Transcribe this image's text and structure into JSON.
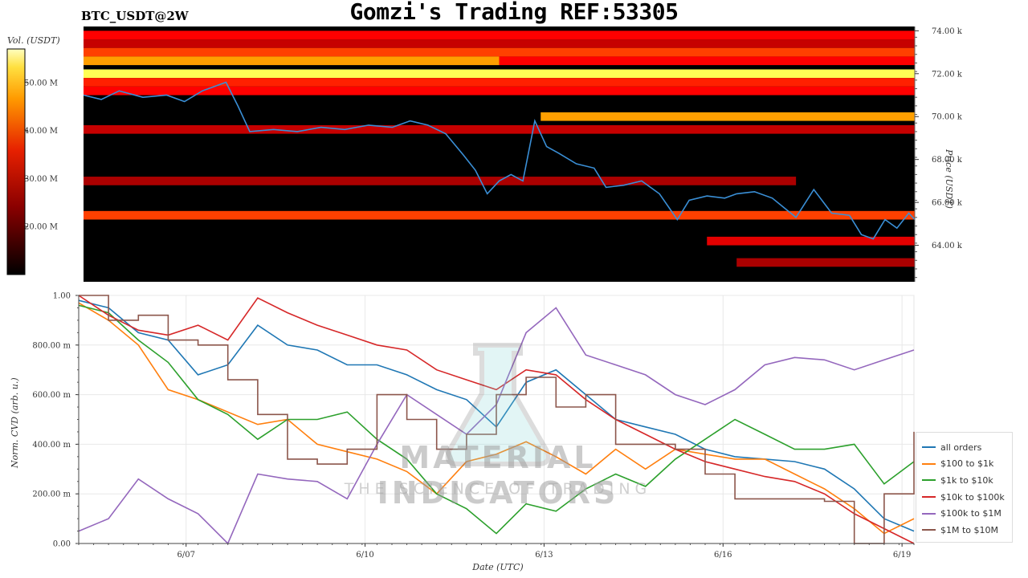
{
  "header": {
    "title": "Gomzi's Trading REF:53305",
    "symbol": "BTC_USDT@2W"
  },
  "colorbar": {
    "label": "Vol. (USDT)",
    "ticks": [
      "50.00 M",
      "40.00 M",
      "30.00 M",
      "20.00 M"
    ],
    "colormap": "hot"
  },
  "watermark": {
    "title": "MATERIAL INDICATORS",
    "subtitle": "THE SCIENCE OF TRADING"
  },
  "chart_data": [
    {
      "type": "heatmap",
      "name": "order-book-heatmap",
      "ylabel": "Price (USDT)",
      "ylim": [
        62300,
        74200
      ],
      "yticks": [
        "74.00 k",
        "72.00 k",
        "70.00 k",
        "68.00 k",
        "66.00 k",
        "64.00 k"
      ],
      "ytick_values": [
        74000,
        72000,
        70000,
        68000,
        66000,
        64000
      ],
      "colorbar_range": [
        10,
        57
      ],
      "bands": [
        {
          "price": 73800,
          "level": 0.45,
          "start": 0,
          "end": 14
        },
        {
          "price": 73400,
          "level": 0.35,
          "start": 0,
          "end": 14
        },
        {
          "price": 73000,
          "level": 0.55,
          "start": 0,
          "end": 14
        },
        {
          "price": 72600,
          "level": 0.7,
          "start": 0,
          "end": 7
        },
        {
          "price": 72600,
          "level": 0.45,
          "start": 7,
          "end": 14
        },
        {
          "price": 72000,
          "level": 0.9,
          "start": 0,
          "end": 14
        },
        {
          "price": 71600,
          "level": 0.5,
          "start": 0,
          "end": 14
        },
        {
          "price": 71200,
          "level": 0.45,
          "start": 0,
          "end": 14
        },
        {
          "price": 70000,
          "level": 0.7,
          "start": 7.7,
          "end": 14
        },
        {
          "price": 69400,
          "level": 0.35,
          "start": 0,
          "end": 14
        },
        {
          "price": 67000,
          "level": 0.3,
          "start": 0,
          "end": 12
        },
        {
          "price": 65400,
          "level": 0.55,
          "start": 0,
          "end": 14
        },
        {
          "price": 64200,
          "level": 0.4,
          "start": 10.5,
          "end": 14
        },
        {
          "price": 63200,
          "level": 0.3,
          "start": 11,
          "end": 14
        }
      ],
      "price_series": {
        "color": "#3a8fd6",
        "x": [
          0,
          0.3,
          0.6,
          1.0,
          1.4,
          1.7,
          2.0,
          2.4,
          2.6,
          2.8,
          3.2,
          3.6,
          4.0,
          4.4,
          4.8,
          5.2,
          5.5,
          5.8,
          6.1,
          6.4,
          6.6,
          6.8,
          7.0,
          7.2,
          7.4,
          7.6,
          7.8,
          8.0,
          8.3,
          8.6,
          8.8,
          9.1,
          9.4,
          9.7,
          10.0,
          10.2,
          10.5,
          10.8,
          11.0,
          11.3,
          11.6,
          12.0,
          12.3,
          12.6,
          12.9,
          13.1,
          13.3,
          13.5,
          13.7,
          13.9,
          14.0
        ],
        "y": [
          71000,
          70800,
          71200,
          70900,
          71000,
          70700,
          71200,
          71600,
          70500,
          69300,
          69400,
          69300,
          69500,
          69400,
          69600,
          69500,
          69800,
          69600,
          69200,
          68200,
          67500,
          66400,
          67000,
          67300,
          67000,
          69800,
          68600,
          68300,
          67800,
          67600,
          66700,
          66800,
          67000,
          66400,
          65200,
          66100,
          66300,
          66200,
          66400,
          66500,
          66200,
          65300,
          66600,
          65500,
          65400,
          64500,
          64300,
          65200,
          64800,
          65500,
          65200
        ]
      }
    },
    {
      "type": "line",
      "name": "cvd-lines",
      "xlabel": "Date (UTC)",
      "ylabel": "Norm. CVD (arb. u.)",
      "ylim": [
        0,
        1.0
      ],
      "yticks": [
        "1.00",
        "800.00 m",
        "600.00 m",
        "400.00 m",
        "200.00 m",
        "0.00"
      ],
      "ytick_values": [
        1.0,
        0.8,
        0.6,
        0.4,
        0.2,
        0.0
      ],
      "xlim": [
        0,
        14
      ],
      "xticks": [
        "6/07",
        "6/10",
        "6/13",
        "6/16",
        "6/19"
      ],
      "xtick_values": [
        1.8,
        4.8,
        7.8,
        10.8,
        13.8
      ],
      "x": [
        0,
        0.5,
        1.0,
        1.5,
        2.0,
        2.5,
        3.0,
        3.5,
        4.0,
        4.5,
        5.0,
        5.5,
        6.0,
        6.5,
        7.0,
        7.5,
        8.0,
        8.5,
        9.0,
        9.5,
        10.0,
        10.5,
        11.0,
        11.5,
        12.0,
        12.5,
        13.0,
        13.5,
        14.0
      ],
      "series": [
        {
          "name": "all orders",
          "color": "#1f77b4",
          "values": [
            0.98,
            0.95,
            0.85,
            0.82,
            0.68,
            0.72,
            0.88,
            0.8,
            0.78,
            0.72,
            0.72,
            0.68,
            0.62,
            0.58,
            0.47,
            0.65,
            0.7,
            0.6,
            0.5,
            0.47,
            0.44,
            0.38,
            0.35,
            0.34,
            0.33,
            0.3,
            0.22,
            0.1,
            0.05
          ]
        },
        {
          "name": "$100 to $1k",
          "color": "#ff7f0e",
          "values": [
            0.97,
            0.9,
            0.8,
            0.62,
            0.58,
            0.53,
            0.48,
            0.5,
            0.4,
            0.37,
            0.34,
            0.29,
            0.2,
            0.33,
            0.36,
            0.41,
            0.35,
            0.28,
            0.38,
            0.3,
            0.38,
            0.36,
            0.34,
            0.34,
            0.28,
            0.22,
            0.14,
            0.04,
            0.1
          ]
        },
        {
          "name": "$1k to $10k",
          "color": "#2ca02c",
          "values": [
            0.96,
            0.93,
            0.82,
            0.73,
            0.58,
            0.52,
            0.42,
            0.5,
            0.5,
            0.53,
            0.42,
            0.34,
            0.2,
            0.14,
            0.04,
            0.16,
            0.13,
            0.22,
            0.28,
            0.23,
            0.34,
            0.42,
            0.5,
            0.44,
            0.38,
            0.38,
            0.4,
            0.24,
            0.33
          ]
        },
        {
          "name": "$10k to $100k",
          "color": "#d62728",
          "values": [
            1.0,
            0.92,
            0.86,
            0.84,
            0.88,
            0.82,
            0.99,
            0.93,
            0.88,
            0.84,
            0.8,
            0.78,
            0.7,
            0.66,
            0.62,
            0.7,
            0.68,
            0.58,
            0.5,
            0.44,
            0.38,
            0.33,
            0.3,
            0.27,
            0.25,
            0.2,
            0.12,
            0.06,
            0.0
          ]
        },
        {
          "name": "$100k to $1M",
          "color": "#9467bd",
          "values": [
            0.05,
            0.1,
            0.26,
            0.18,
            0.12,
            0.0,
            0.28,
            0.26,
            0.25,
            0.18,
            0.4,
            0.6,
            0.52,
            0.44,
            0.56,
            0.85,
            0.95,
            0.76,
            0.72,
            0.68,
            0.6,
            0.56,
            0.62,
            0.72,
            0.75,
            0.74,
            0.7,
            0.74,
            0.78
          ]
        },
        {
          "name": "$1M to $10M",
          "color": "#8c564b",
          "values": [
            1.0,
            0.9,
            0.92,
            0.82,
            0.8,
            0.66,
            0.52,
            0.34,
            0.32,
            0.38,
            0.6,
            0.5,
            0.38,
            0.44,
            0.6,
            0.67,
            0.55,
            0.6,
            0.4,
            0.4,
            0.38,
            0.28,
            0.18,
            0.18,
            0.18,
            0.17,
            0.0,
            0.2,
            0.45
          ]
        }
      ]
    }
  ]
}
